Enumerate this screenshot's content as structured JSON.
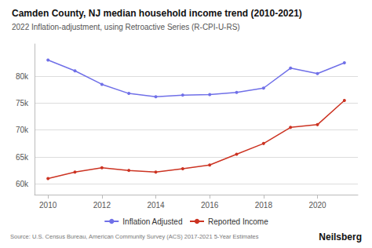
{
  "chart_data": {
    "type": "line",
    "title": "Camden County, NJ median household income trend (2010-2021)",
    "subtitle": "2022 Inflation-adjustment, using Retroactive Series (R-CPI-U-RS)",
    "annotations": [
      "Source: U.S. Census Bureau, American Community Survey (ACS) 2017-2021 5-Year Estimates",
      "Neilsberg"
    ],
    "x": [
      2010,
      2011,
      2012,
      2013,
      2014,
      2015,
      2016,
      2017,
      2018,
      2019,
      2020,
      2021
    ],
    "series": [
      {
        "name": "Inflation Adjusted",
        "color": "#7070e8",
        "marker": "circle",
        "values": [
          83000,
          81000,
          78500,
          76800,
          76200,
          76500,
          76600,
          77000,
          77800,
          81500,
          80500,
          82500
        ]
      },
      {
        "name": "Reported Income",
        "color": "#cc3322",
        "marker": "circle",
        "values": [
          61000,
          62200,
          63000,
          62500,
          62200,
          62800,
          63500,
          65500,
          67500,
          70500,
          71000,
          75500
        ]
      }
    ],
    "xlim": [
      2009.5,
      2021.5
    ],
    "xticks": [
      2010,
      2012,
      2014,
      2016,
      2018,
      2020
    ],
    "ylim": [
      58000,
      86000
    ],
    "yticks": [
      {
        "value": 60000,
        "label": "60k"
      },
      {
        "value": 65000,
        "label": "65k"
      },
      {
        "value": 70000,
        "label": "70k"
      },
      {
        "value": 75000,
        "label": "75k"
      },
      {
        "value": 80000,
        "label": "80k"
      }
    ],
    "grid": true,
    "legend": "bottom"
  }
}
